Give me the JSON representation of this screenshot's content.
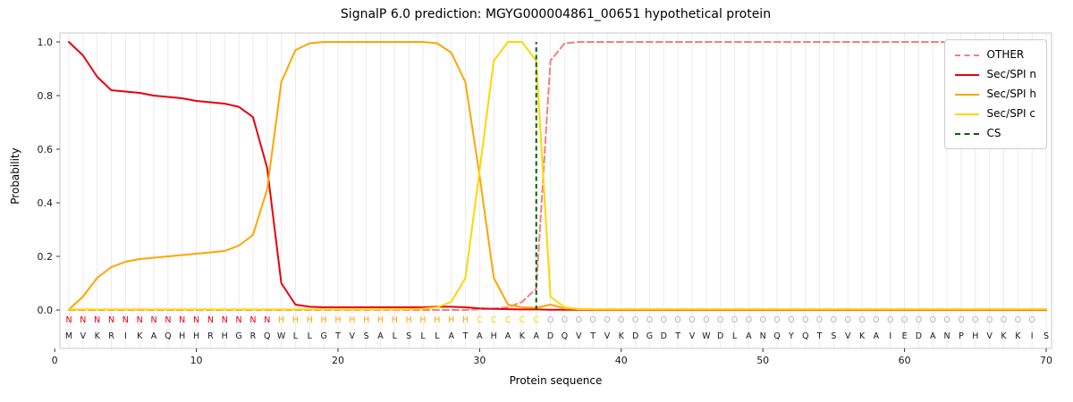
{
  "chart": {
    "title": "SignalP 6.0 prediction: MGYG000004861_00651 hypothetical protein",
    "xlabel": "Protein sequence",
    "ylabel": "Probability"
  },
  "chart_data": {
    "type": "line",
    "title": "SignalP 6.0 prediction: MGYG000004861_00651 hypothetical protein",
    "xlabel": "Protein sequence",
    "ylabel": "Probability",
    "ylim": [
      0,
      1
    ],
    "xlim": [
      0,
      70
    ],
    "x_ticks": [
      0,
      10,
      20,
      30,
      40,
      50,
      60,
      70
    ],
    "y_ticks": [
      "0.0",
      "0.2",
      "0.4",
      "0.6",
      "0.8",
      "1.0"
    ],
    "grid": "vertical-per-residue",
    "legend_position": "upper-right",
    "sequence": "MVKRIKAQHHRHGRQWLLGTVSALSLLATAHAKADQVTVKDGDTVWDLANQYQTSVKAIEDANPHVKKIS",
    "region_labels": "NNNNNNNNNNNNNNNHHHHHHHHHHHHHHCCCCCOOOOOOOOOOOOOOOOOOOOOOOOOOOOOOOOOOO",
    "region_colors": {
      "N": "#e8000b",
      "H": "#ffa500",
      "C": "#ffd700",
      "O": "#b3b3b3"
    },
    "cleavage_site": 34,
    "cs_color": "#006400",
    "series": [
      {
        "key": "other",
        "name": "OTHER",
        "color": "#f08080",
        "dash": true,
        "values": [
          0.0,
          0.0,
          0.0,
          0.0,
          0.0,
          0.0,
          0.0,
          0.0,
          0.0,
          0.0,
          0.0,
          0.0,
          0.0,
          0.0,
          0.0,
          0.0,
          0.0,
          0.0,
          0.0,
          0.0,
          0.0,
          0.0,
          0.0,
          0.0,
          0.0,
          0.0,
          0.0,
          0.0,
          0.0,
          0.003,
          0.005,
          0.01,
          0.03,
          0.08,
          0.93,
          0.995,
          1.0,
          1.0,
          1.0,
          1.0,
          1.0,
          1.0,
          1.0,
          1.0,
          1.0,
          1.0,
          1.0,
          1.0,
          1.0,
          1.0,
          1.0,
          1.0,
          1.0,
          1.0,
          1.0,
          1.0,
          1.0,
          1.0,
          1.0,
          1.0,
          1.0,
          1.0,
          1.0,
          1.0,
          1.0,
          1.0,
          1.0,
          1.0,
          1.0,
          1.0
        ]
      },
      {
        "key": "n",
        "name": "Sec/SPI n",
        "color": "#e8000b",
        "dash": false,
        "values": [
          1.0,
          0.95,
          0.87,
          0.82,
          0.815,
          0.81,
          0.8,
          0.795,
          0.79,
          0.78,
          0.775,
          0.77,
          0.758,
          0.72,
          0.53,
          0.1,
          0.02,
          0.012,
          0.01,
          0.01,
          0.01,
          0.01,
          0.01,
          0.01,
          0.01,
          0.01,
          0.012,
          0.012,
          0.01,
          0.006,
          0.004,
          0.003,
          0.002,
          0.002,
          0.001,
          0.001,
          0.001,
          0.001,
          0.001,
          0.001,
          0.001,
          0.001,
          0.001,
          0.001,
          0.001,
          0.001,
          0.001,
          0.001,
          0.001,
          0.001,
          0.001,
          0.001,
          0.001,
          0.001,
          0.001,
          0.001,
          0.001,
          0.001,
          0.001,
          0.001,
          0.001,
          0.001,
          0.001,
          0.001,
          0.001,
          0.001,
          0.001,
          0.001,
          0.001,
          0.001
        ]
      },
      {
        "key": "h",
        "name": "Sec/SPI h",
        "color": "#ffa500",
        "dash": false,
        "values": [
          0.002,
          0.05,
          0.12,
          0.16,
          0.18,
          0.19,
          0.195,
          0.2,
          0.205,
          0.21,
          0.215,
          0.22,
          0.24,
          0.28,
          0.45,
          0.85,
          0.97,
          0.995,
          1.0,
          1.0,
          1.0,
          1.0,
          1.0,
          1.0,
          1.0,
          1.0,
          0.995,
          0.96,
          0.85,
          0.5,
          0.12,
          0.02,
          0.01,
          0.008,
          0.02,
          0.006,
          0.004,
          0.003,
          0.003,
          0.003,
          0.003,
          0.003,
          0.003,
          0.003,
          0.003,
          0.003,
          0.003,
          0.003,
          0.003,
          0.003,
          0.003,
          0.003,
          0.003,
          0.003,
          0.003,
          0.003,
          0.003,
          0.003,
          0.003,
          0.003,
          0.003,
          0.003,
          0.003,
          0.003,
          0.003,
          0.003,
          0.003,
          0.003,
          0.003,
          0.003
        ]
      },
      {
        "key": "c",
        "name": "Sec/SPI c",
        "color": "#ffd700",
        "dash": false,
        "values": [
          0.002,
          0.002,
          0.002,
          0.002,
          0.002,
          0.002,
          0.002,
          0.002,
          0.002,
          0.002,
          0.002,
          0.002,
          0.002,
          0.002,
          0.002,
          0.002,
          0.002,
          0.002,
          0.002,
          0.002,
          0.002,
          0.002,
          0.002,
          0.002,
          0.003,
          0.005,
          0.01,
          0.03,
          0.12,
          0.52,
          0.93,
          1.0,
          1.0,
          0.93,
          0.05,
          0.01,
          0.003,
          0.003,
          0.003,
          0.003,
          0.003,
          0.003,
          0.003,
          0.003,
          0.003,
          0.003,
          0.003,
          0.003,
          0.003,
          0.003,
          0.003,
          0.003,
          0.003,
          0.003,
          0.003,
          0.003,
          0.003,
          0.003,
          0.003,
          0.003,
          0.003,
          0.003,
          0.003,
          0.003,
          0.003,
          0.003,
          0.003,
          0.003,
          0.003,
          0.003
        ]
      }
    ],
    "legend": [
      {
        "label": "OTHER",
        "color": "#f08080",
        "dash": true
      },
      {
        "label": "Sec/SPI n",
        "color": "#e8000b",
        "dash": false
      },
      {
        "label": "Sec/SPI h",
        "color": "#ffa500",
        "dash": false
      },
      {
        "label": "Sec/SPI c",
        "color": "#ffd700",
        "dash": false
      },
      {
        "label": "CS",
        "color": "#006400",
        "dash": true
      }
    ]
  }
}
